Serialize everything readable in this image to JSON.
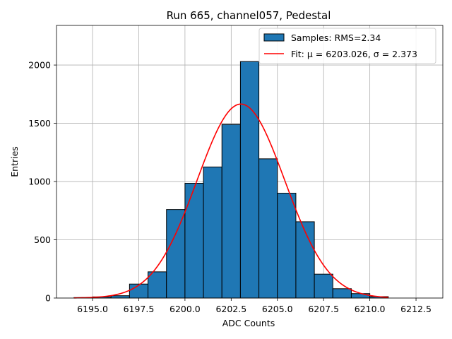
{
  "chart_data": {
    "type": "bar",
    "title": "Run 665, channel057, Pedestal",
    "xlabel": "ADC Counts",
    "ylabel": "Entries",
    "xlim": [
      6193.05,
      6213.95
    ],
    "ylim": [
      0,
      2340
    ],
    "xticks": [
      6195.0,
      6197.5,
      6200.0,
      6202.5,
      6205.0,
      6207.5,
      6210.0,
      6212.5
    ],
    "xtick_labels": [
      "6195.0",
      "6197.5",
      "6200.0",
      "6202.5",
      "6205.0",
      "6207.5",
      "6210.0",
      "6212.5"
    ],
    "yticks": [
      0,
      500,
      1000,
      1500,
      2000
    ],
    "ytick_labels": [
      "0",
      "500",
      "1000",
      "1500",
      "2000"
    ],
    "grid": true,
    "legend_position": "top-right",
    "bar_color": "#1f77b4",
    "fit_color": "#ff0000",
    "series": [
      {
        "name": "Samples: RMS=2.34",
        "type": "histogram",
        "bin_edges": [
          6194,
          6195,
          6196,
          6197,
          6198,
          6199,
          6200,
          6201,
          6202,
          6203,
          6204,
          6205,
          6206,
          6207,
          6208,
          6209,
          6210,
          6211
        ],
        "values": [
          4,
          10,
          20,
          120,
          225,
          760,
          985,
          1125,
          1490,
          2030,
          1195,
          900,
          655,
          205,
          80,
          38,
          12
        ]
      },
      {
        "name": "Fit: μ = 6203.026, σ = 2.373",
        "type": "line",
        "mu": 6203.026,
        "sigma": 2.373,
        "amplitude": 1665,
        "x_range": [
          6194,
          6211
        ]
      }
    ]
  }
}
